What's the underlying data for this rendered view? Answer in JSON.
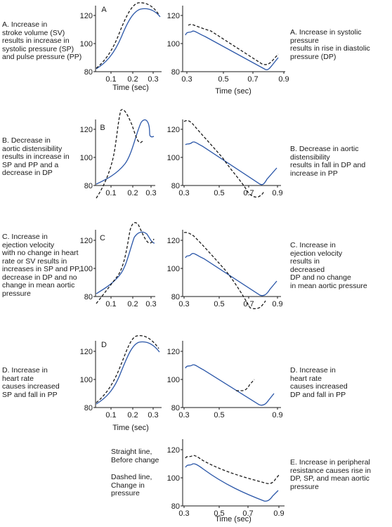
{
  "left_text": {
    "A": "A. Increase in\nstroke volume (SV)\nresults in increase in\nsystolic pressure (SP)\nand pulse pressure (PP)",
    "B": "B. Decrease in\naortic distensibility\nresults in increase in\nSP and PP and a\ndecrease in DP",
    "C": "C. Increase in\nejection velocity\nwith no change in heart\nrate or SV results in\nincreases in SP and PP,\ndecrease in DP and no\nchange in mean aortic\npressure",
    "D": "D. Increase in\nheart rate\ncauses increased\nSP and fall in PP"
  },
  "right_text": {
    "A": "A. Increase in systolic pressure\nresults in rise in diastolic\npressure (DP)",
    "B": "B. Decrease in aortic distensibility\nresults in fall in DP and\nincrease in PP",
    "C": "C. Increase in\nejection velocity\nresults in\ndecreased\nDP and no change\nin mean aortic pressure",
    "D": "D. Increase in\nheart rate\ncauses increased\nDP and fall in PP",
    "E": "E. Increase in peripheral\nresistance causes rise in\nDP, SP, and mean aortic\npressure"
  },
  "legend": {
    "solid": "Straight line,\nBefore change",
    "dashed": "Dashed line,\nChange in\npressure"
  },
  "colors": {
    "solid": "#2a56a8",
    "dashed": "#1a1a1a",
    "axis": "#1a1a1a"
  },
  "panel_letters": [
    "A",
    "B",
    "C",
    "D"
  ],
  "y_ticks": [
    "80",
    "100",
    "120"
  ],
  "left_x_ticks": [
    "0.1",
    "0.2",
    "0.3"
  ],
  "right_x_ticks": [
    "0.3",
    "0.5",
    "0.7",
    "0.9"
  ],
  "x_axis_label": "Time (sec)"
}
